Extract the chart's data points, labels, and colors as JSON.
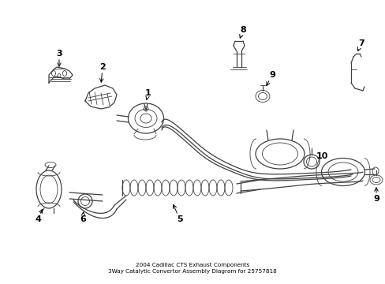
{
  "title": "2004 Cadillac CTS Exhaust Components\n3Way Catalytic Convertor Assembly Diagram for 25757818",
  "background_color": "#ffffff",
  "line_color": "#404040",
  "label_color": "#000000",
  "figsize": [
    4.89,
    3.6
  ],
  "dpi": 100,
  "xlim": [
    0,
    489
  ],
  "ylim": [
    0,
    360
  ]
}
